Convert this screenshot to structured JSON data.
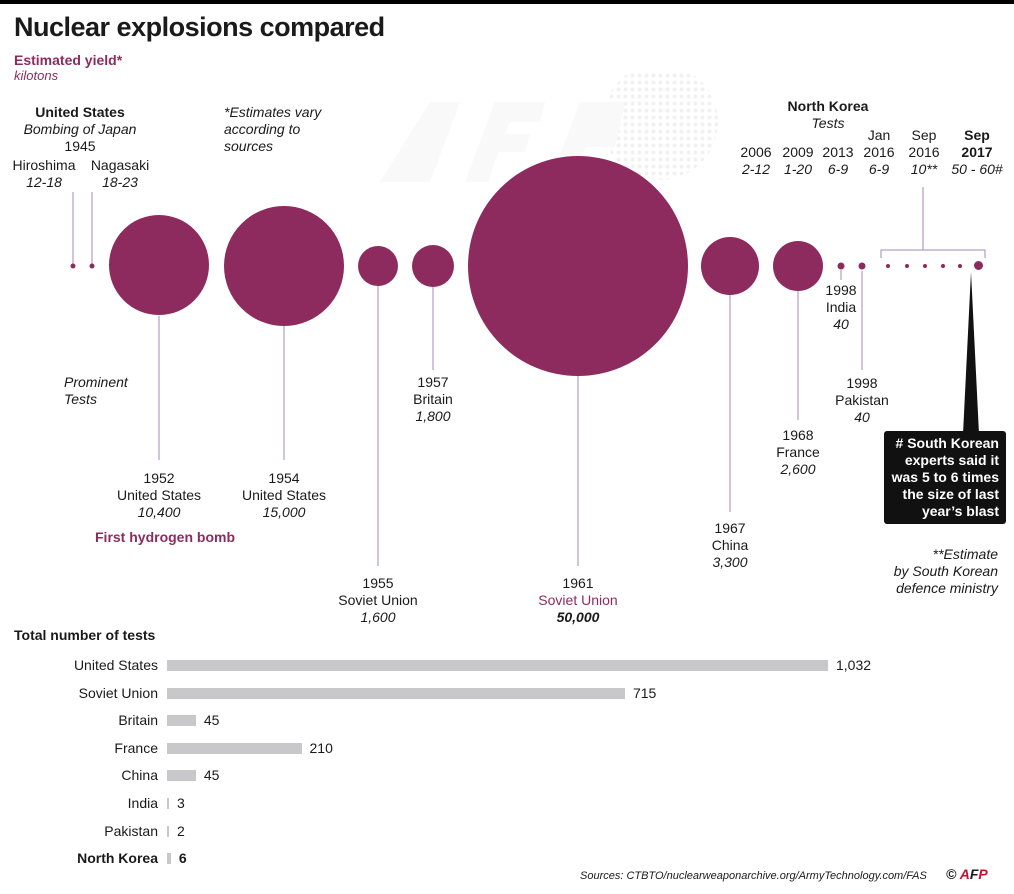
{
  "header": {
    "title": "Nuclear explosions compared",
    "subtitle": "Estimated yield*",
    "unit": "kilotons"
  },
  "notes": {
    "estimates": [
      "*Estimates vary",
      "according to",
      "sources"
    ],
    "prominent": [
      "Prominent",
      "Tests"
    ],
    "south_korea_callout": [
      "# South Korean",
      "experts said it",
      "was 5 to 6 times",
      "the size of last",
      "year’s blast"
    ],
    "ministry": [
      "**Estimate",
      "by South Korean",
      "defence ministry"
    ]
  },
  "japan": {
    "country": "United States",
    "caption": "Bombing of Japan",
    "year": "1945",
    "cities": [
      {
        "name": "Hiroshima",
        "yield": "12-18"
      },
      {
        "name": "Nagasaki",
        "yield": "18-23"
      }
    ]
  },
  "prominent_tests": [
    {
      "year": "1952",
      "country": "United States",
      "yield": "10,400",
      "extra": "First hydrogen bomb"
    },
    {
      "year": "1954",
      "country": "United States",
      "yield": "15,000"
    },
    {
      "year": "1955",
      "country": "Soviet Union",
      "yield": "1,600"
    },
    {
      "year": "1957",
      "country": "Britain",
      "yield": "1,800"
    },
    {
      "year": "1961",
      "country": "Soviet Union",
      "yield": "50,000"
    },
    {
      "year": "1967",
      "country": "China",
      "yield": "3,300"
    },
    {
      "year": "1968",
      "country": "France",
      "yield": "2,600"
    },
    {
      "year": "1998",
      "country": "India",
      "yield": "40"
    },
    {
      "year": "1998",
      "country": "Pakistan",
      "yield": "40"
    }
  ],
  "north_korea": {
    "country": "North Korea",
    "caption": "Tests",
    "tests": [
      {
        "date": "2006",
        "yield": "2-12"
      },
      {
        "date": "2009",
        "yield": "1-20"
      },
      {
        "date": "2013",
        "yield": "6-9"
      },
      {
        "date_l1": "Jan",
        "date_l2": "2016",
        "yield": "6-9"
      },
      {
        "date_l1": "Sep",
        "date_l2": "2016",
        "yield": "10**"
      },
      {
        "date_l1": "Sep",
        "date_l2": "2017",
        "yield": "50 - 60#"
      }
    ]
  },
  "tests_chart": {
    "title": "Total number of tests"
  },
  "chart_data": [
    {
      "type": "scatter",
      "title": "Nuclear explosions compared",
      "ylabel": "Estimated yield* (kilotons)",
      "series": [
        {
          "name": "Estimated yield",
          "color": "#8e2b5e"
        }
      ],
      "points": [
        {
          "label": "Hiroshima 1945",
          "value": 15
        },
        {
          "label": "Nagasaki 1945",
          "value": 20.5
        },
        {
          "label": "1952 United States",
          "value": 10400
        },
        {
          "label": "1954 United States",
          "value": 15000
        },
        {
          "label": "1955 Soviet Union",
          "value": 1600
        },
        {
          "label": "1957 Britain",
          "value": 1800
        },
        {
          "label": "1961 Soviet Union",
          "value": 50000
        },
        {
          "label": "1967 China",
          "value": 3300
        },
        {
          "label": "1968 France",
          "value": 2600
        },
        {
          "label": "1998 India",
          "value": 40
        },
        {
          "label": "1998 Pakistan",
          "value": 40
        },
        {
          "label": "North Korea 2006",
          "value": 7
        },
        {
          "label": "North Korea 2009",
          "value": 10.5
        },
        {
          "label": "North Korea 2013",
          "value": 7.5
        },
        {
          "label": "North Korea Jan 2016",
          "value": 7.5
        },
        {
          "label": "North Korea Sep 2016",
          "value": 10
        },
        {
          "label": "North Korea Sep 2017",
          "value": 55
        }
      ]
    },
    {
      "type": "bar",
      "orientation": "horizontal",
      "title": "Total number of tests",
      "categories": [
        "United States",
        "Soviet Union",
        "Britain",
        "France",
        "China",
        "India",
        "Pakistan",
        "North Korea"
      ],
      "values": [
        1032,
        715,
        45,
        210,
        45,
        3,
        2,
        6
      ],
      "value_labels": [
        "1,032",
        "715",
        "45",
        "210",
        "45",
        "3",
        "2",
        "6"
      ],
      "bar_color": "#c8c8ca",
      "xlim": [
        0,
        1032
      ]
    }
  ],
  "footer": {
    "source": "Sources: CTBTO/nuclearweaponarchive.org/ArmyTechnology.com/FAS",
    "copyright": "©",
    "logo": [
      "A",
      "F",
      "P"
    ]
  }
}
